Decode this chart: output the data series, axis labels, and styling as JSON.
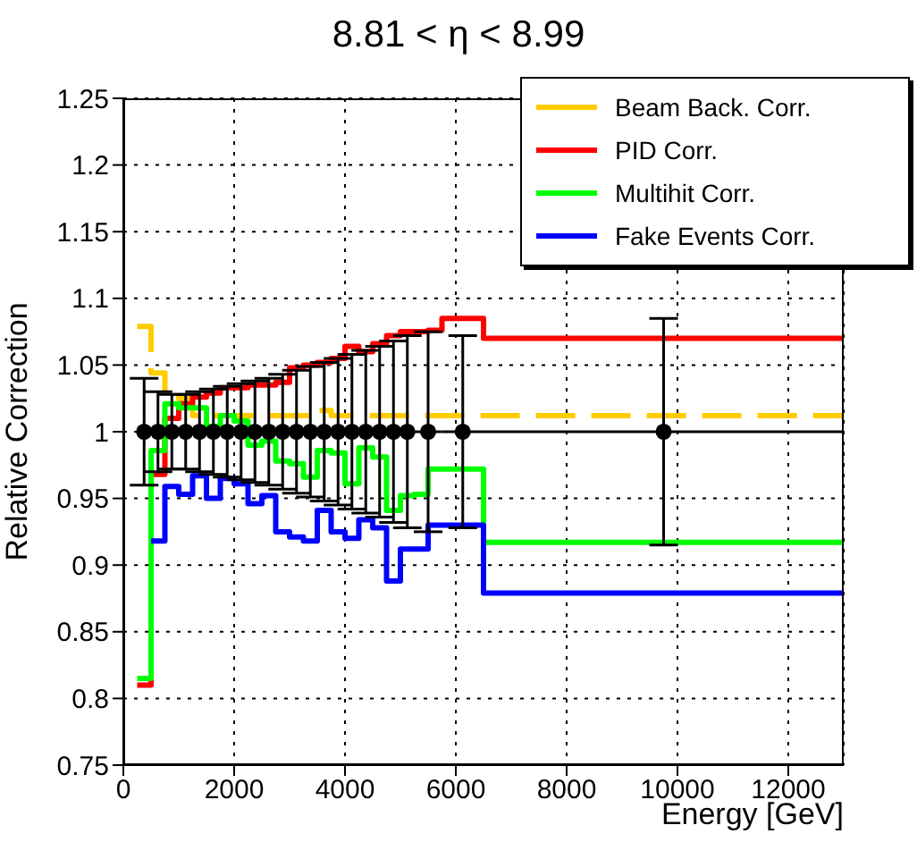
{
  "chart_data": {
    "type": "step",
    "title": "8.81 < η < 8.99",
    "xlabel": "Energy [GeV]",
    "ylabel": "Relative Correction",
    "xlim": [
      0,
      13000
    ],
    "xticks": [
      0,
      2000,
      4000,
      6000,
      8000,
      10000,
      12000
    ],
    "ylim": [
      0.75,
      1.25
    ],
    "yticks": [
      0.75,
      0.8,
      0.85,
      0.9,
      0.95,
      1,
      1.05,
      1.1,
      1.15,
      1.2,
      1.25
    ],
    "grid": true,
    "legend": "top right",
    "series": [
      {
        "name": "Beam Back. Corr.",
        "type": "step",
        "color": "#ffcc00",
        "line_style": "dashed",
        "x": [
          250,
          500,
          750,
          1000,
          1250,
          1500,
          1750,
          2000,
          2250,
          2500,
          2750,
          3000,
          3250,
          3500,
          3750,
          4000,
          4250,
          4500,
          4750,
          5000,
          5250,
          5500,
          5750,
          6000,
          6250,
          6500,
          13000
        ],
        "values": [
          1.079,
          1.044,
          1.028,
          1.025,
          1.012,
          1.012,
          1.012,
          1.012,
          1.012,
          1.012,
          1.012,
          1.012,
          1.012,
          1.016,
          1.012,
          1.012,
          1.012,
          1.012,
          1.012,
          1.012,
          1.012,
          1.012,
          1.012,
          1.012,
          1.012,
          1.012,
          1.012
        ]
      },
      {
        "name": "PID Corr.",
        "type": "step",
        "color": "#ff0000",
        "x": [
          250,
          500,
          750,
          1000,
          1250,
          1500,
          1750,
          2000,
          2250,
          2500,
          2750,
          3000,
          3250,
          3500,
          3750,
          4000,
          4250,
          4500,
          4750,
          5000,
          5250,
          5500,
          5750,
          6000,
          6250,
          6500,
          13000
        ],
        "values": [
          0.81,
          0.968,
          1.01,
          1.021,
          1.026,
          1.029,
          1.033,
          1.033,
          1.035,
          1.035,
          1.037,
          1.048,
          1.05,
          1.052,
          1.055,
          1.064,
          1.06,
          1.066,
          1.072,
          1.075,
          1.075,
          1.076,
          1.085,
          1.085,
          1.085,
          1.07,
          1.07
        ]
      },
      {
        "name": "Multihit Corr.",
        "type": "step",
        "color": "#00ff00",
        "x": [
          250,
          500,
          750,
          1000,
          1250,
          1500,
          1750,
          2000,
          2250,
          2500,
          2750,
          3000,
          3250,
          3500,
          3750,
          4000,
          4250,
          4500,
          4750,
          5000,
          5250,
          5500,
          5750,
          6000,
          6250,
          6500,
          13000
        ],
        "values": [
          0.815,
          0.986,
          1.021,
          1.018,
          1.018,
          1.004,
          1.012,
          1.008,
          0.99,
          0.993,
          0.978,
          0.976,
          0.966,
          0.986,
          0.984,
          0.961,
          0.988,
          0.981,
          0.941,
          0.952,
          0.953,
          0.972,
          0.972,
          0.972,
          0.972,
          0.917,
          0.917
        ]
      },
      {
        "name": "Fake Events Corr.",
        "type": "step",
        "color": "#0000ff",
        "x": [
          500,
          750,
          1000,
          1250,
          1500,
          1750,
          2000,
          2250,
          2500,
          2750,
          3000,
          3250,
          3500,
          3750,
          4000,
          4250,
          4500,
          4750,
          5000,
          5250,
          5500,
          5750,
          6000,
          6250,
          6500,
          13000
        ],
        "values": [
          0.918,
          0.959,
          0.953,
          0.967,
          0.95,
          0.965,
          0.961,
          0.946,
          0.952,
          0.925,
          0.921,
          0.918,
          0.941,
          0.925,
          0.92,
          0.934,
          0.928,
          0.888,
          0.912,
          0.912,
          0.93,
          0.93,
          0.93,
          0.93,
          0.879,
          0.879
        ]
      },
      {
        "type": "scatter",
        "color": "#000000",
        "marker": "circle",
        "x": [
          375,
          625,
          875,
          1125,
          1375,
          1625,
          1875,
          2125,
          2375,
          2625,
          2875,
          3125,
          3375,
          3625,
          3875,
          4125,
          4375,
          4625,
          4875,
          5125,
          5500,
          6125,
          9750
        ],
        "values": [
          1,
          1,
          1,
          1,
          1,
          1,
          1,
          1,
          1,
          1,
          1,
          1,
          1,
          1,
          1,
          1,
          1,
          1,
          1,
          1,
          1,
          1,
          1
        ],
        "errors": [
          0.04,
          0.03,
          0.028,
          0.028,
          0.03,
          0.032,
          0.034,
          0.036,
          0.038,
          0.04,
          0.043,
          0.046,
          0.049,
          0.052,
          0.055,
          0.058,
          0.061,
          0.064,
          0.068,
          0.072,
          0.075,
          0.072,
          0.085
        ],
        "xerrors": [
          125,
          125,
          125,
          125,
          125,
          125,
          125,
          125,
          125,
          125,
          125,
          125,
          125,
          125,
          125,
          125,
          125,
          125,
          125,
          125,
          250,
          375,
          3250
        ]
      }
    ]
  }
}
